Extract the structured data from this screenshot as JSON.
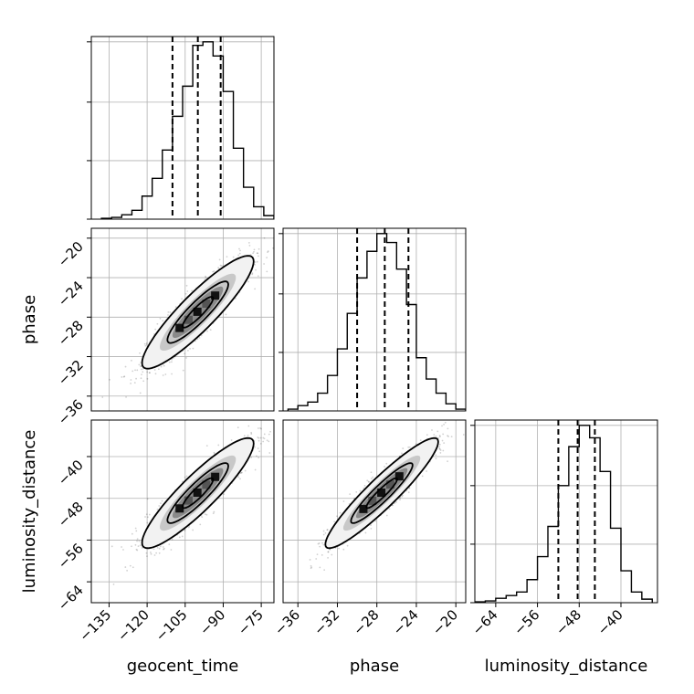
{
  "chart_data": {
    "type": "corner",
    "parameters": [
      "geocent_time",
      "phase",
      "luminosity_distance"
    ],
    "grid": true,
    "axes": {
      "geocent_time": {
        "range": [
          -142,
          -70
        ],
        "ticks": [
          -135,
          -120,
          -105,
          -90,
          -75
        ],
        "tick_labels": [
          "−135",
          "−120",
          "−105",
          "−90",
          "−75"
        ]
      },
      "phase": {
        "range": [
          -37.5,
          -19
        ],
        "ticks": [
          -36,
          -32,
          -28,
          -24,
          -20
        ],
        "tick_labels": [
          "−36",
          "−32",
          "−28",
          "−24",
          "−20"
        ]
      },
      "luminosity_distance": {
        "range": [
          -68,
          -33
        ],
        "ticks": [
          -64,
          -56,
          -48,
          -40
        ],
        "tick_labels": [
          "−64",
          "−56",
          "−48",
          "−40"
        ]
      }
    },
    "histograms": {
      "geocent_time": {
        "bin_edges": [
          -138,
          -134,
          -130,
          -126,
          -122,
          -118,
          -114,
          -110,
          -106,
          -102,
          -98,
          -94,
          -90,
          -86,
          -82,
          -78,
          -74,
          -70
        ],
        "counts": [
          0.005,
          0.01,
          0.025,
          0.05,
          0.13,
          0.23,
          0.39,
          0.58,
          0.75,
          0.98,
          1.0,
          0.92,
          0.72,
          0.4,
          0.18,
          0.07,
          0.02
        ],
        "quantiles": [
          -110,
          -100,
          -91
        ]
      },
      "phase": {
        "bin_edges": [
          -37,
          -36,
          -35,
          -34,
          -33,
          -32,
          -31,
          -30,
          -29,
          -28,
          -27,
          -26,
          -25,
          -24,
          -23,
          -22,
          -21,
          -20,
          -19
        ],
        "counts": [
          0.01,
          0.03,
          0.05,
          0.1,
          0.2,
          0.35,
          0.55,
          0.75,
          0.9,
          1.0,
          0.95,
          0.8,
          0.6,
          0.3,
          0.18,
          0.1,
          0.04,
          0.01
        ],
        "quantiles": [
          -30,
          -27.2,
          -24.8
        ]
      },
      "luminosity_distance": {
        "bin_edges": [
          -68,
          -66,
          -64,
          -62,
          -60,
          -58,
          -56,
          -54,
          -52,
          -50,
          -48,
          -46,
          -44,
          -42,
          -40,
          -38,
          -36,
          -34
        ],
        "counts": [
          0.005,
          0.01,
          0.025,
          0.04,
          0.06,
          0.13,
          0.26,
          0.43,
          0.66,
          0.88,
          1.0,
          0.93,
          0.74,
          0.42,
          0.18,
          0.06,
          0.02
        ],
        "quantiles": [
          -52,
          -48.3,
          -45
        ]
      }
    },
    "pairs": [
      {
        "x": "geocent_time",
        "y": "phase",
        "center": [
          -100,
          -27.5
        ],
        "sd": [
          10,
          2.6
        ],
        "corr": 0.9
      },
      {
        "x": "geocent_time",
        "y": "luminosity_distance",
        "center": [
          -100,
          -47
        ],
        "sd": [
          10,
          4.8
        ],
        "corr": 0.9
      },
      {
        "x": "phase",
        "y": "luminosity_distance",
        "center": [
          -27.5,
          -47
        ],
        "sd": [
          2.6,
          4.8
        ],
        "corr": 0.93
      }
    ]
  }
}
